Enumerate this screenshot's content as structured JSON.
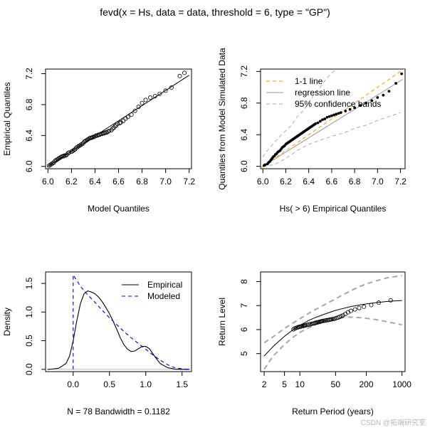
{
  "title": "fevd(x = Hs, data = data, threshold = 6, type = \"GP\")",
  "watermark": "CSDN @拓端研究室",
  "chart_data": [
    {
      "type": "scatter",
      "name": "qq-plot",
      "xlabel": "Model Quantiles",
      "ylabel": "Empirical Quantiles",
      "xlim": [
        5.98,
        7.22
      ],
      "ylim": [
        5.97,
        7.26
      ],
      "xticks": [
        "6.0",
        "6.2",
        "6.4",
        "6.6",
        "6.8",
        "7.0",
        "7.2"
      ],
      "yticks": [
        "6.0",
        "6.4",
        "6.8",
        "7.2"
      ],
      "line": {
        "x": [
          6.0,
          7.2
        ],
        "y": [
          6.0,
          7.18
        ]
      },
      "points": {
        "x": [
          6.01,
          6.02,
          6.03,
          6.04,
          6.05,
          6.06,
          6.07,
          6.08,
          6.09,
          6.1,
          6.11,
          6.12,
          6.13,
          6.14,
          6.15,
          6.16,
          6.17,
          6.18,
          6.2,
          6.21,
          6.22,
          6.23,
          6.24,
          6.25,
          6.26,
          6.27,
          6.28,
          6.29,
          6.3,
          6.31,
          6.32,
          6.33,
          6.34,
          6.35,
          6.36,
          6.37,
          6.38,
          6.39,
          6.4,
          6.41,
          6.42,
          6.43,
          6.44,
          6.45,
          6.46,
          6.47,
          6.48,
          6.49,
          6.5,
          6.51,
          6.52,
          6.54,
          6.55,
          6.56,
          6.57,
          6.58,
          6.59,
          6.61,
          6.62,
          6.64,
          6.66,
          6.68,
          6.71,
          6.74,
          6.77,
          6.8,
          6.83,
          6.87,
          6.91,
          6.95,
          7.0,
          7.05,
          7.12,
          7.16
        ],
        "y": [
          6.01,
          6.02,
          6.03,
          6.04,
          6.05,
          6.07,
          6.08,
          6.09,
          6.1,
          6.11,
          6.12,
          6.13,
          6.13,
          6.14,
          6.14,
          6.15,
          6.17,
          6.18,
          6.19,
          6.2,
          6.21,
          6.22,
          6.24,
          6.25,
          6.26,
          6.27,
          6.28,
          6.29,
          6.3,
          6.32,
          6.33,
          6.34,
          6.35,
          6.36,
          6.37,
          6.37,
          6.38,
          6.38,
          6.39,
          6.4,
          6.4,
          6.41,
          6.41,
          6.42,
          6.42,
          6.43,
          6.43,
          6.44,
          6.44,
          6.45,
          6.46,
          6.47,
          6.49,
          6.5,
          6.52,
          6.53,
          6.55,
          6.56,
          6.57,
          6.59,
          6.62,
          6.64,
          6.67,
          6.72,
          6.77,
          6.82,
          6.86,
          6.89,
          6.91,
          6.94,
          6.98,
          7.02,
          7.17,
          7.21
        ]
      }
    },
    {
      "type": "scatter",
      "name": "simulated-qq",
      "xlabel": "Hs( > 6) Empirical Quantiles",
      "ylabel": "Quantiles from Model Simulated Data",
      "xlim": [
        5.98,
        7.24
      ],
      "ylim": [
        5.97,
        7.23
      ],
      "xticks": [
        "6.0",
        "6.2",
        "6.4",
        "6.6",
        "6.8",
        "7.0",
        "7.2"
      ],
      "yticks": [
        "6.0",
        "6.4",
        "6.8",
        "7.2"
      ],
      "legend": [
        "1-1 line",
        "regression line",
        "95% confidence bands"
      ],
      "line_1to1": {
        "x": [
          5.98,
          7.24
        ],
        "y": [
          5.98,
          7.24
        ]
      },
      "regression": {
        "x": [
          6.0,
          7.22
        ],
        "y": [
          6.0,
          7.1
        ]
      },
      "upper_band": {
        "x": [
          6.0,
          6.05,
          6.1,
          6.15,
          6.2,
          6.25,
          6.3,
          6.35,
          6.4,
          6.45,
          6.5,
          6.55,
          6.6,
          6.65
        ],
        "y": [
          6.12,
          6.22,
          6.3,
          6.38,
          6.45,
          6.52,
          6.63,
          6.7,
          6.8,
          6.92,
          7.0,
          7.1,
          7.18,
          7.24
        ]
      },
      "lower_band": {
        "x": [
          6.0,
          6.1,
          6.2,
          6.3,
          6.4,
          6.5,
          6.6,
          6.7,
          6.8,
          6.9,
          7.0,
          7.1,
          7.2
        ],
        "y": [
          6.0,
          6.02,
          6.1,
          6.2,
          6.28,
          6.33,
          6.38,
          6.42,
          6.48,
          6.52,
          6.58,
          6.63,
          6.68
        ]
      },
      "points": {
        "x": [
          6.01,
          6.02,
          6.04,
          6.05,
          6.06,
          6.07,
          6.08,
          6.09,
          6.1,
          6.11,
          6.12,
          6.13,
          6.14,
          6.15,
          6.16,
          6.17,
          6.18,
          6.19,
          6.2,
          6.21,
          6.22,
          6.23,
          6.24,
          6.25,
          6.26,
          6.27,
          6.28,
          6.29,
          6.3,
          6.31,
          6.32,
          6.33,
          6.34,
          6.35,
          6.36,
          6.37,
          6.38,
          6.39,
          6.4,
          6.41,
          6.42,
          6.43,
          6.44,
          6.45,
          6.46,
          6.48,
          6.5,
          6.52,
          6.54,
          6.56,
          6.58,
          6.6,
          6.62,
          6.64,
          6.66,
          6.68,
          6.72,
          6.76,
          6.8,
          6.85,
          6.9,
          6.95,
          7.0,
          7.05,
          7.1,
          7.16,
          7.21
        ],
        "y": [
          6.01,
          6.02,
          6.03,
          6.05,
          6.06,
          6.08,
          6.1,
          6.12,
          6.13,
          6.15,
          6.16,
          6.18,
          6.19,
          6.2,
          6.22,
          6.24,
          6.25,
          6.26,
          6.28,
          6.29,
          6.3,
          6.31,
          6.32,
          6.33,
          6.34,
          6.35,
          6.36,
          6.37,
          6.38,
          6.39,
          6.4,
          6.41,
          6.42,
          6.43,
          6.44,
          6.45,
          6.46,
          6.47,
          6.48,
          6.49,
          6.5,
          6.51,
          6.52,
          6.53,
          6.54,
          6.55,
          6.57,
          6.59,
          6.6,
          6.62,
          6.63,
          6.64,
          6.65,
          6.66,
          6.67,
          6.68,
          6.7,
          6.72,
          6.74,
          6.77,
          6.8,
          6.83,
          6.87,
          6.9,
          6.95,
          7.05,
          7.17
        ]
      }
    },
    {
      "type": "line",
      "name": "density",
      "xlabel": "N = 78   Bandwidth = 0.1182",
      "ylabel": "Density",
      "xlim": [
        -0.38,
        1.63
      ],
      "ylim": [
        -0.04,
        1.7
      ],
      "xticks": [
        "0.0",
        "0.5",
        "1.0",
        "1.5"
      ],
      "yticks": [
        "0.0",
        "0.5",
        "1.0",
        "1.5"
      ],
      "legend": [
        "Empirical",
        "Modeled"
      ],
      "empirical": {
        "x": [
          -0.35,
          -0.3,
          -0.2,
          -0.1,
          -0.05,
          0.0,
          0.05,
          0.1,
          0.15,
          0.2,
          0.25,
          0.3,
          0.35,
          0.4,
          0.45,
          0.5,
          0.55,
          0.6,
          0.65,
          0.7,
          0.75,
          0.8,
          0.85,
          0.9,
          0.95,
          1.0,
          1.05,
          1.1,
          1.15,
          1.2,
          1.3,
          1.4,
          1.5,
          1.6
        ],
        "y": [
          0.0,
          0.003,
          0.02,
          0.1,
          0.23,
          0.5,
          0.85,
          1.15,
          1.32,
          1.37,
          1.35,
          1.32,
          1.26,
          1.18,
          1.08,
          0.97,
          0.84,
          0.7,
          0.55,
          0.43,
          0.35,
          0.31,
          0.32,
          0.36,
          0.4,
          0.4,
          0.36,
          0.27,
          0.18,
          0.1,
          0.03,
          0.005,
          0.0,
          0.0
        ]
      },
      "modeled": {
        "x": [
          0.0,
          0.0,
          0.1,
          0.2,
          0.3,
          0.4,
          0.5,
          0.6,
          0.7,
          0.8,
          0.9,
          1.0,
          1.1,
          1.2,
          1.3,
          1.4,
          1.5,
          1.6
        ],
        "y": [
          0.0,
          1.65,
          1.45,
          1.3,
          1.17,
          1.03,
          0.9,
          0.78,
          0.66,
          0.55,
          0.45,
          0.35,
          0.25,
          0.16,
          0.08,
          0.03,
          0.01,
          0.0
        ]
      }
    },
    {
      "type": "line",
      "name": "return-level",
      "xlabel": "Return Period (years)",
      "ylabel": "Return Level",
      "xscale": "log",
      "xlim": [
        1.7,
        1150
      ],
      "ylim": [
        4.25,
        8.4
      ],
      "xticks": [
        "2",
        "5",
        "10",
        "50",
        "200",
        "1000"
      ],
      "xtick_values": [
        2,
        5,
        10,
        50,
        200,
        1000
      ],
      "yticks": [
        "5",
        "6",
        "7",
        "8"
      ],
      "fit": {
        "x": [
          2,
          3,
          5,
          7,
          10,
          15,
          20,
          30,
          50,
          70,
          100,
          150,
          200,
          300,
          500,
          700,
          1000
        ],
        "y": [
          4.9,
          5.3,
          5.72,
          5.96,
          6.18,
          6.38,
          6.5,
          6.64,
          6.8,
          6.88,
          6.96,
          7.03,
          7.07,
          7.12,
          7.17,
          7.19,
          7.21
        ]
      },
      "upper_ci": {
        "x": [
          2,
          3,
          5,
          7,
          10,
          15,
          20,
          30,
          50,
          70,
          100,
          150,
          200,
          300,
          500,
          700,
          1000
        ],
        "y": [
          5.45,
          5.7,
          6.05,
          6.25,
          6.45,
          6.68,
          6.83,
          7.03,
          7.28,
          7.45,
          7.62,
          7.8,
          7.9,
          8.02,
          8.15,
          8.2,
          8.25
        ]
      },
      "lower_ci": {
        "x": [
          2,
          3,
          5,
          7,
          10,
          15,
          20,
          30,
          50,
          70,
          100,
          150,
          200,
          300,
          500,
          700,
          1000
        ],
        "y": [
          4.35,
          4.9,
          5.38,
          5.65,
          5.88,
          6.08,
          6.2,
          6.35,
          6.45,
          6.5,
          6.52,
          6.5,
          6.47,
          6.42,
          6.33,
          6.27,
          6.2
        ]
      },
      "points": {
        "x": [
          7.5,
          8,
          8.5,
          9,
          9.5,
          10,
          10.5,
          11,
          11.5,
          12,
          12.5,
          13,
          14,
          15,
          16,
          17,
          18,
          19,
          20,
          21,
          22,
          23,
          24,
          25,
          26,
          27,
          28,
          30,
          32,
          34,
          36,
          38,
          40,
          42,
          45,
          48,
          52,
          56,
          60,
          65,
          70,
          78,
          88,
          100,
          120,
          145,
          180,
          250,
          350,
          600
        ],
        "y": [
          6.01,
          6.05,
          6.07,
          6.09,
          6.11,
          6.12,
          6.13,
          6.14,
          6.15,
          6.16,
          6.17,
          6.18,
          6.2,
          6.21,
          6.22,
          6.24,
          6.25,
          6.26,
          6.28,
          6.29,
          6.3,
          6.31,
          6.32,
          6.33,
          6.34,
          6.35,
          6.36,
          6.37,
          6.38,
          6.39,
          6.4,
          6.41,
          6.42,
          6.43,
          6.44,
          6.45,
          6.48,
          6.5,
          6.53,
          6.56,
          6.6,
          6.65,
          6.72,
          6.78,
          6.84,
          6.9,
          6.95,
          7.02,
          7.12,
          7.22
        ]
      }
    }
  ]
}
